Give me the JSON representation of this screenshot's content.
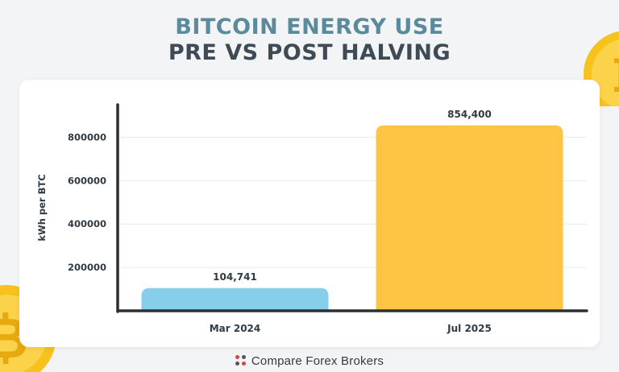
{
  "title_line1": "BITCOIN ENERGY USE",
  "title_line2": "PRE VS POST HALVING",
  "brand": "Compare Forex Brokers",
  "colors": {
    "background": "#f3f4f6",
    "title_accent": "#5a8a9b",
    "title_dark": "#3e4a55",
    "bar_pre": "#87ceeb",
    "bar_post": "#fdc543",
    "coin": "#f7c21b",
    "brand_red": "#d64545"
  },
  "icons": [
    "bitcoin-coin-icon",
    "compare-forex-brokers-logo-icon"
  ],
  "chart_data": {
    "type": "bar",
    "categories": [
      "Mar 2024",
      "Jul 2025"
    ],
    "values": [
      104741,
      854400
    ],
    "data_labels": [
      "104,741",
      "854,400"
    ],
    "title": "BITCOIN ENERGY USE PRE VS POST HALVING",
    "xlabel": "",
    "ylabel": "kWh per BTC",
    "y_ticks": [
      200000,
      400000,
      600000,
      800000
    ],
    "ylim": [
      0,
      950000
    ],
    "grid": true,
    "legend": "none"
  }
}
